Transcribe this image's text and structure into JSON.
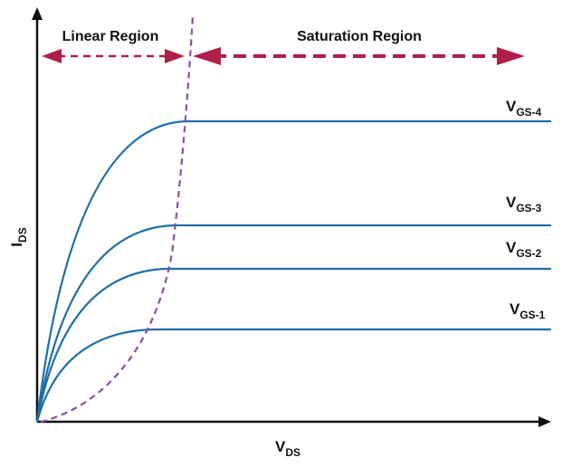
{
  "diagram": {
    "regions": {
      "linear": "Linear Region",
      "saturation": "Saturation Region"
    },
    "axes": {
      "x_main": "V",
      "x_sub": "DS",
      "y_main": "I",
      "y_sub": "DS"
    },
    "curves": [
      {
        "main": "V",
        "sub": "GS-4"
      },
      {
        "main": "V",
        "sub": "GS-3"
      },
      {
        "main": "V",
        "sub": "GS-2"
      },
      {
        "main": "V",
        "sub": "GS-1"
      }
    ]
  },
  "colors": {
    "axis": "#111111",
    "curve": "#1f6fa8",
    "boundary": "#8a4fb0",
    "arrow": "#b01e4a"
  }
}
